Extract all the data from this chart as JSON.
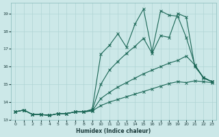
{
  "xlabel": "Humidex (Indice chaleur)",
  "xlim_min": -0.5,
  "xlim_max": 23.5,
  "ylim_min": 13.0,
  "ylim_max": 19.6,
  "yticks": [
    13,
    14,
    15,
    16,
    17,
    18,
    19
  ],
  "xticks": [
    0,
    1,
    2,
    3,
    4,
    5,
    6,
    7,
    8,
    9,
    10,
    11,
    12,
    13,
    14,
    15,
    16,
    17,
    18,
    19,
    20,
    21,
    22,
    23
  ],
  "bg_color": "#cce8e8",
  "grid_color": "#b0d4d4",
  "line_color": "#1a6655",
  "lines": [
    [
      13.45,
      13.55,
      13.3,
      13.3,
      13.25,
      13.35,
      13.35,
      13.45,
      13.45,
      13.5,
      13.8,
      14.0,
      14.15,
      14.3,
      14.45,
      14.6,
      14.75,
      14.9,
      15.05,
      15.15,
      15.1,
      15.2,
      15.15,
      15.1
    ],
    [
      13.45,
      13.55,
      13.3,
      13.3,
      13.25,
      13.35,
      13.35,
      13.45,
      13.45,
      13.5,
      14.2,
      14.55,
      14.85,
      15.1,
      15.35,
      15.6,
      15.8,
      16.0,
      16.2,
      16.35,
      16.6,
      16.1,
      15.35,
      15.15
    ],
    [
      13.45,
      13.55,
      13.3,
      13.3,
      13.25,
      13.35,
      13.35,
      13.45,
      13.45,
      13.55,
      15.0,
      15.8,
      16.3,
      16.75,
      17.15,
      17.6,
      16.75,
      17.75,
      17.65,
      19.0,
      18.8,
      16.0,
      15.4,
      15.15
    ],
    [
      13.45,
      13.55,
      13.3,
      13.3,
      13.25,
      13.35,
      13.35,
      13.45,
      13.45,
      13.6,
      16.7,
      17.2,
      17.85,
      17.1,
      18.4,
      19.25,
      16.85,
      19.15,
      18.9,
      18.85,
      17.65,
      16.1,
      15.4,
      15.15
    ]
  ]
}
